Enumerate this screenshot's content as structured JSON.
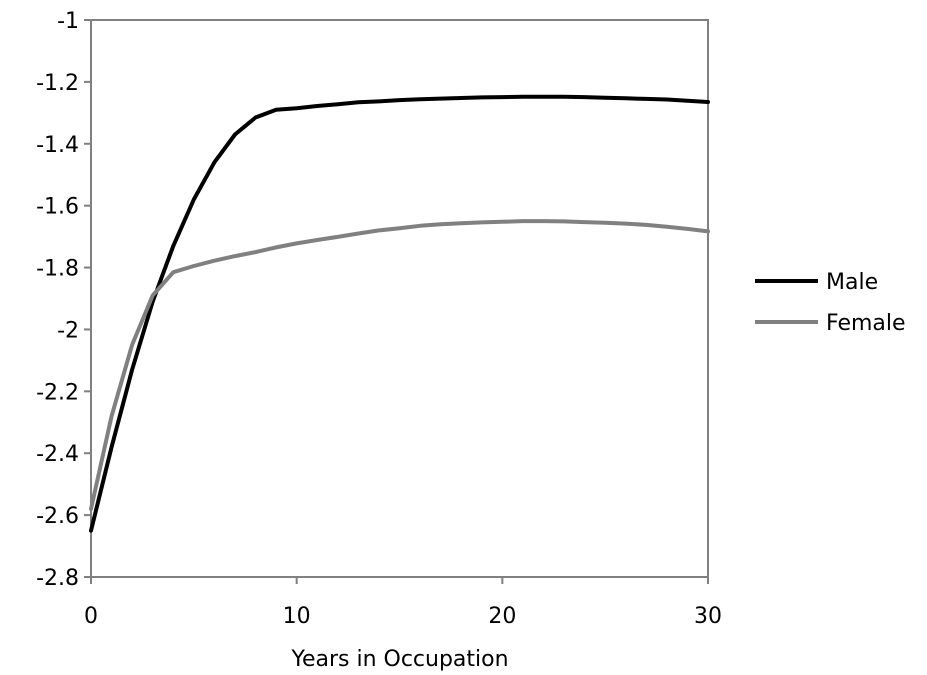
{
  "chart_data": {
    "type": "line",
    "title": "",
    "xlabel": "Years in Occupation",
    "ylabel": "",
    "xlim": [
      0,
      30
    ],
    "ylim": [
      -2.8,
      -1
    ],
    "x_ticks": [
      0,
      10,
      20,
      30
    ],
    "x_tick_labels": [
      "0",
      "10",
      "20",
      "30"
    ],
    "y_ticks": [
      -1,
      -1.2,
      -1.4,
      -1.6,
      -1.8,
      -2,
      -2.2,
      -2.4,
      -2.6,
      -2.8
    ],
    "y_tick_labels": [
      "-1",
      "-1.2",
      "-1.4",
      "-1.6",
      "-1.8",
      "-2",
      "-2.2",
      "-2.4",
      "-2.6",
      "-2.8"
    ],
    "grid": false,
    "legend_position": "right",
    "x": [
      0,
      1,
      2,
      3,
      4,
      5,
      6,
      7,
      8,
      9,
      10,
      11,
      12,
      13,
      14,
      15,
      16,
      17,
      18,
      19,
      20,
      21,
      22,
      23,
      24,
      25,
      26,
      27,
      28,
      29,
      30
    ],
    "series": [
      {
        "name": "Male",
        "color": "#000000",
        "values": [
          -2.65,
          -2.38,
          -2.13,
          -1.91,
          -1.73,
          -1.58,
          -1.46,
          -1.37,
          -1.315,
          -1.29,
          -1.285,
          -1.278,
          -1.272,
          -1.266,
          -1.263,
          -1.259,
          -1.256,
          -1.254,
          -1.252,
          -1.25,
          -1.249,
          -1.248,
          -1.248,
          -1.248,
          -1.249,
          -1.251,
          -1.253,
          -1.255,
          -1.257,
          -1.261,
          -1.265
        ]
      },
      {
        "name": "Female",
        "color": "#808080",
        "values": [
          -2.58,
          -2.28,
          -2.05,
          -1.89,
          -1.815,
          -1.795,
          -1.778,
          -1.763,
          -1.75,
          -1.735,
          -1.722,
          -1.711,
          -1.701,
          -1.69,
          -1.68,
          -1.673,
          -1.665,
          -1.66,
          -1.657,
          -1.654,
          -1.652,
          -1.65,
          -1.65,
          -1.651,
          -1.653,
          -1.655,
          -1.658,
          -1.662,
          -1.668,
          -1.675,
          -1.683
        ]
      }
    ]
  }
}
